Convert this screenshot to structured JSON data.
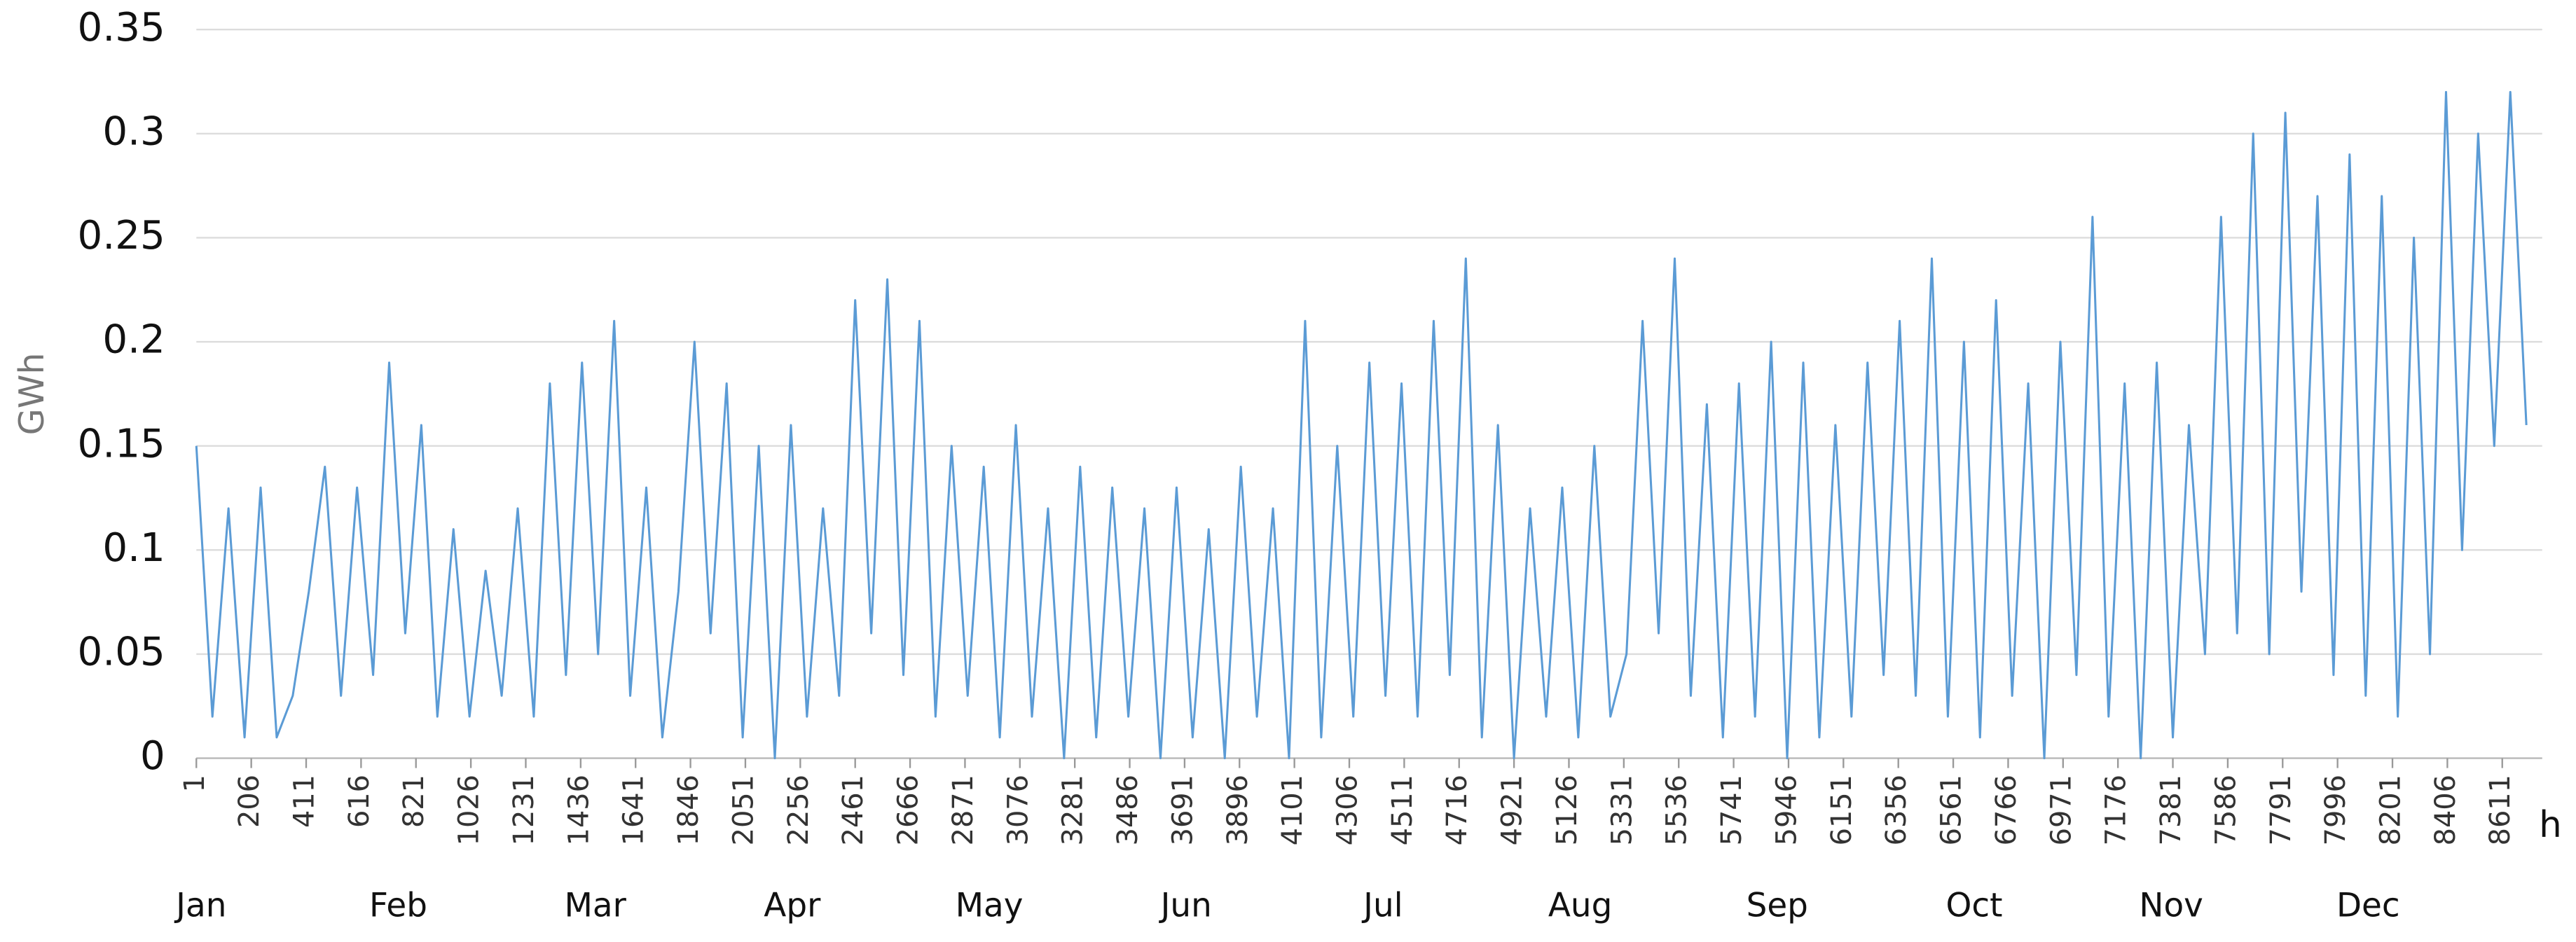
{
  "chart_data": {
    "type": "line",
    "y_label": "GWh",
    "x_label": "h",
    "month_labels": [
      "Jan",
      "Feb",
      "Mar",
      "Apr",
      "May",
      "Jun",
      "Jul",
      "Aug",
      "Sep",
      "Oct",
      "Nov",
      "Dec"
    ],
    "x": [
      1,
      61,
      121,
      181,
      241,
      301,
      361,
      421,
      481,
      541,
      601,
      661,
      721,
      781,
      841,
      901,
      961,
      1021,
      1081,
      1141,
      1201,
      1261,
      1321,
      1381,
      1441,
      1501,
      1561,
      1621,
      1681,
      1741,
      1801,
      1861,
      1921,
      1981,
      2041,
      2101,
      2161,
      2221,
      2281,
      2341,
      2401,
      2461,
      2521,
      2581,
      2641,
      2701,
      2761,
      2821,
      2881,
      2941,
      3001,
      3061,
      3121,
      3181,
      3241,
      3301,
      3361,
      3421,
      3481,
      3541,
      3601,
      3661,
      3721,
      3781,
      3841,
      3901,
      3961,
      4021,
      4081,
      4141,
      4201,
      4261,
      4321,
      4381,
      4441,
      4501,
      4561,
      4621,
      4681,
      4741,
      4801,
      4861,
      4921,
      4981,
      5041,
      5101,
      5161,
      5221,
      5281,
      5341,
      5401,
      5461,
      5521,
      5581,
      5641,
      5701,
      5761,
      5821,
      5881,
      5941,
      6001,
      6061,
      6121,
      6181,
      6241,
      6301,
      6361,
      6421,
      6481,
      6541,
      6601,
      6661,
      6721,
      6781,
      6841,
      6901,
      6961,
      7021,
      7081,
      7141,
      7201,
      7261,
      7321,
      7381,
      7441,
      7501,
      7561,
      7621,
      7681,
      7741,
      7801,
      7861,
      7921,
      7981,
      8041,
      8101,
      8161,
      8221,
      8281,
      8341,
      8401,
      8461,
      8521,
      8581,
      8641,
      8701
    ],
    "series": [
      {
        "name": "GWh",
        "color": "#5b9bd5",
        "values": [
          0.15,
          0.02,
          0.12,
          0.01,
          0.13,
          0.01,
          0.03,
          0.08,
          0.14,
          0.03,
          0.13,
          0.04,
          0.19,
          0.06,
          0.16,
          0.02,
          0.11,
          0.02,
          0.09,
          0.03,
          0.12,
          0.02,
          0.18,
          0.04,
          0.19,
          0.05,
          0.21,
          0.03,
          0.13,
          0.01,
          0.08,
          0.2,
          0.06,
          0.18,
          0.01,
          0.15,
          0.0,
          0.16,
          0.02,
          0.12,
          0.03,
          0.22,
          0.06,
          0.23,
          0.04,
          0.21,
          0.02,
          0.15,
          0.03,
          0.14,
          0.01,
          0.16,
          0.02,
          0.12,
          0.0,
          0.14,
          0.01,
          0.13,
          0.02,
          0.12,
          0.0,
          0.13,
          0.01,
          0.11,
          0.0,
          0.14,
          0.02,
          0.12,
          0.0,
          0.21,
          0.01,
          0.15,
          0.02,
          0.19,
          0.03,
          0.18,
          0.02,
          0.21,
          0.04,
          0.24,
          0.01,
          0.16,
          0.0,
          0.12,
          0.02,
          0.13,
          0.01,
          0.15,
          0.02,
          0.05,
          0.21,
          0.06,
          0.24,
          0.03,
          0.17,
          0.01,
          0.18,
          0.02,
          0.2,
          0.0,
          0.19,
          0.01,
          0.16,
          0.02,
          0.19,
          0.04,
          0.21,
          0.03,
          0.24,
          0.02,
          0.2,
          0.01,
          0.22,
          0.03,
          0.18,
          0.0,
          0.2,
          0.04,
          0.26,
          0.02,
          0.18,
          0.0,
          0.19,
          0.01,
          0.16,
          0.05,
          0.26,
          0.06,
          0.3,
          0.05,
          0.31,
          0.08,
          0.27,
          0.04,
          0.29,
          0.03,
          0.27,
          0.02,
          0.25,
          0.05,
          0.32,
          0.1,
          0.3,
          0.15,
          0.32,
          0.16
        ]
      }
    ],
    "xlim": [
      1,
      8760
    ],
    "ylim": [
      0,
      0.35
    ],
    "xticks": [
      1,
      206,
      411,
      616,
      821,
      1026,
      1231,
      1436,
      1641,
      1846,
      2051,
      2256,
      2461,
      2666,
      2871,
      3076,
      3281,
      3486,
      3691,
      3896,
      4101,
      4306,
      4511,
      4716,
      4921,
      5126,
      5331,
      5536,
      5741,
      5946,
      6151,
      6356,
      6561,
      6766,
      6971,
      7176,
      7381,
      7586,
      7791,
      7996,
      8201,
      8406,
      8611
    ],
    "yticks": [
      0,
      0.05,
      0.1,
      0.15,
      0.2,
      0.25,
      0.3,
      0.35
    ],
    "grid": true
  }
}
